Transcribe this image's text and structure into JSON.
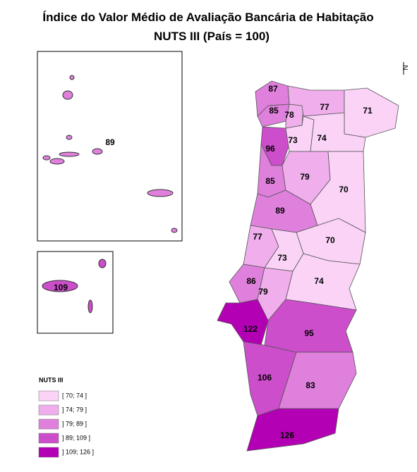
{
  "title": "Índice do Valor Médio de Avaliação Bancária de Habitação",
  "subtitle": "NUTS III (País = 100)",
  "north_label": "N",
  "legend": {
    "title": "NUTS III",
    "items": [
      {
        "label": "[ 70;  74 ]",
        "color": "#fad3f7"
      },
      {
        "label": "] 74;  79 ]",
        "color": "#f0aeec"
      },
      {
        "label": "] 79;  89 ]",
        "color": "#df80dc"
      },
      {
        "label": "] 89;  109 ]",
        "color": "#cc4ecb"
      },
      {
        "label": "] 109; 126 ]",
        "color": "#b400b4"
      }
    ]
  },
  "regions": [
    {
      "value": 87,
      "color": "#df80dc"
    },
    {
      "value": 85,
      "color": "#df80dc"
    },
    {
      "value": 78,
      "color": "#f0aeec"
    },
    {
      "value": 77,
      "color": "#f0aeec"
    },
    {
      "value": 71,
      "color": "#fad3f7"
    },
    {
      "value": 96,
      "color": "#cc4ecb"
    },
    {
      "value": 73,
      "color": "#fad3f7"
    },
    {
      "value": 74,
      "color": "#fad3f7"
    },
    {
      "value": 85,
      "color": "#df80dc"
    },
    {
      "value": 79,
      "color": "#f0aeec"
    },
    {
      "value": 70,
      "color": "#fad3f7"
    },
    {
      "value": 89,
      "color": "#df80dc"
    },
    {
      "value": 77,
      "color": "#f0aeec"
    },
    {
      "value": 70,
      "color": "#fad3f7"
    },
    {
      "value": 73,
      "color": "#fad3f7"
    },
    {
      "value": 86,
      "color": "#df80dc"
    },
    {
      "value": 79,
      "color": "#f0aeec"
    },
    {
      "value": 74,
      "color": "#fad3f7"
    },
    {
      "value": 122,
      "color": "#b400b4"
    },
    {
      "value": 95,
      "color": "#cc4ecb"
    },
    {
      "value": 106,
      "color": "#cc4ecb"
    },
    {
      "value": 83,
      "color": "#df80dc"
    },
    {
      "value": 126,
      "color": "#b400b4"
    },
    {
      "value": 89,
      "color": "#df80dc"
    },
    {
      "value": 109,
      "color": "#cc4ecb"
    }
  ]
}
